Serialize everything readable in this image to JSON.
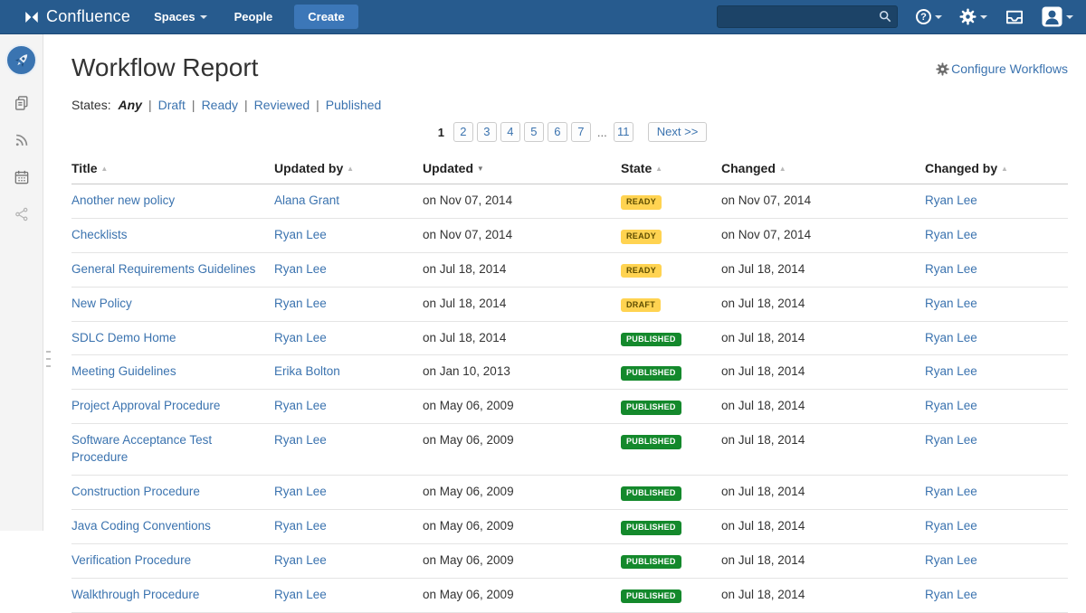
{
  "colors": {
    "navbar": "#275b8e",
    "create_button": "#3c77b8",
    "link": "#3b73af",
    "badge_yellow": "#ffd351",
    "badge_green": "#14892c",
    "sidebar_bg": "#f4f4f4"
  },
  "navbar": {
    "brand": "Confluence",
    "menu": [
      {
        "label": "Spaces",
        "has_caret": true
      },
      {
        "label": "People",
        "has_caret": false
      }
    ],
    "create_label": "Create",
    "search": {
      "value": "",
      "placeholder": ""
    },
    "icons": [
      "search-icon",
      "help-icon",
      "gear-icon",
      "tray-icon",
      "user-avatar-icon"
    ]
  },
  "sidebar": {
    "icons": [
      "space-logo-rocket",
      "pages-icon",
      "feed-icon",
      "calendar-icon",
      "share-icon"
    ]
  },
  "header": {
    "title": "Workflow Report",
    "configure_label": "Configure Workflows"
  },
  "states": {
    "label": "States:",
    "options": [
      {
        "label": "Any",
        "active": true
      },
      {
        "label": "Draft",
        "active": false
      },
      {
        "label": "Ready",
        "active": false
      },
      {
        "label": "Reviewed",
        "active": false
      },
      {
        "label": "Published",
        "active": false
      }
    ]
  },
  "pagination": {
    "current": "1",
    "pages": [
      "2",
      "3",
      "4",
      "5",
      "6",
      "7"
    ],
    "ellipsis": "...",
    "last_page": "11",
    "next_label": "Next >>"
  },
  "table": {
    "columns": [
      {
        "label": "Title",
        "sort": "asc"
      },
      {
        "label": "Updated by",
        "sort": "asc"
      },
      {
        "label": "Updated",
        "sort": "desc"
      },
      {
        "label": "State",
        "sort": "asc"
      },
      {
        "label": "Changed",
        "sort": "asc"
      },
      {
        "label": "Changed by",
        "sort": "asc"
      }
    ],
    "state_styles": {
      "READY": "yellow",
      "DRAFT": "yellow",
      "PUBLISHED": "green"
    },
    "rows": [
      {
        "title": "Another new policy",
        "updated_by": "Alana Grant",
        "updated": "on Nov 07, 2014",
        "state": "READY",
        "changed": "on Nov 07, 2014",
        "changed_by": "Ryan Lee"
      },
      {
        "title": "Checklists",
        "updated_by": "Ryan Lee",
        "updated": "on Nov 07, 2014",
        "state": "READY",
        "changed": "on Nov 07, 2014",
        "changed_by": "Ryan Lee"
      },
      {
        "title": "General Requirements Guidelines",
        "updated_by": "Ryan Lee",
        "updated": "on Jul 18, 2014",
        "state": "READY",
        "changed": "on Jul 18, 2014",
        "changed_by": "Ryan Lee"
      },
      {
        "title": "New Policy",
        "updated_by": "Ryan Lee",
        "updated": "on Jul 18, 2014",
        "state": "DRAFT",
        "changed": "on Jul 18, 2014",
        "changed_by": "Ryan Lee"
      },
      {
        "title": "SDLC Demo Home",
        "updated_by": "Ryan Lee",
        "updated": "on Jul 18, 2014",
        "state": "PUBLISHED",
        "changed": "on Jul 18, 2014",
        "changed_by": "Ryan Lee"
      },
      {
        "title": "Meeting Guidelines",
        "updated_by": "Erika Bolton",
        "updated": "on Jan 10, 2013",
        "state": "PUBLISHED",
        "changed": "on Jul 18, 2014",
        "changed_by": "Ryan Lee"
      },
      {
        "title": "Project Approval Procedure",
        "updated_by": "Ryan Lee",
        "updated": "on May 06, 2009",
        "state": "PUBLISHED",
        "changed": "on Jul 18, 2014",
        "changed_by": "Ryan Lee"
      },
      {
        "title": "Software Acceptance Test Procedure",
        "updated_by": "Ryan Lee",
        "updated": "on May 06, 2009",
        "state": "PUBLISHED",
        "changed": "on Jul 18, 2014",
        "changed_by": "Ryan Lee"
      },
      {
        "title": "Construction Procedure",
        "updated_by": "Ryan Lee",
        "updated": "on May 06, 2009",
        "state": "PUBLISHED",
        "changed": "on Jul 18, 2014",
        "changed_by": "Ryan Lee"
      },
      {
        "title": "Java Coding Conventions",
        "updated_by": "Ryan Lee",
        "updated": "on May 06, 2009",
        "state": "PUBLISHED",
        "changed": "on Jul 18, 2014",
        "changed_by": "Ryan Lee"
      },
      {
        "title": "Verification Procedure",
        "updated_by": "Ryan Lee",
        "updated": "on May 06, 2009",
        "state": "PUBLISHED",
        "changed": "on Jul 18, 2014",
        "changed_by": "Ryan Lee"
      },
      {
        "title": "Walkthrough Procedure",
        "updated_by": "Ryan Lee",
        "updated": "on May 06, 2009",
        "state": "PUBLISHED",
        "changed": "on Jul 18, 2014",
        "changed_by": "Ryan Lee"
      }
    ]
  }
}
